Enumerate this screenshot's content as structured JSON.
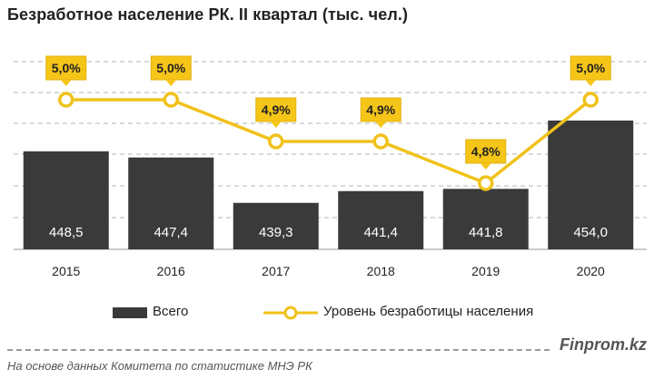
{
  "title": "Безработное население РК. II квартал (тыс. чел.)",
  "chart_data": {
    "type": "bar",
    "categories": [
      "2015",
      "2016",
      "2017",
      "2018",
      "2019",
      "2020"
    ],
    "series": [
      {
        "name": "Всего",
        "type": "bar",
        "values": [
          448.5,
          447.4,
          439.3,
          441.4,
          441.8,
          454.0
        ],
        "labels": [
          "448,5",
          "447,4",
          "439,3",
          "441,4",
          "441,8",
          "454,0"
        ],
        "color": "#3a3a3a"
      },
      {
        "name": "Уровень безработицы населения",
        "type": "line",
        "values": [
          5.0,
          5.0,
          4.9,
          4.9,
          4.8,
          5.0
        ],
        "labels": [
          "5,0%",
          "5,0%",
          "4,9%",
          "4,9%",
          "4,8%",
          "5,0%"
        ],
        "color": "#f0c21a"
      }
    ],
    "legend": "bottom",
    "grid": true
  },
  "footer": {
    "brand": "Finprom.kz",
    "source": "На основе данных  Комитета по статистике МНЭ РК"
  }
}
